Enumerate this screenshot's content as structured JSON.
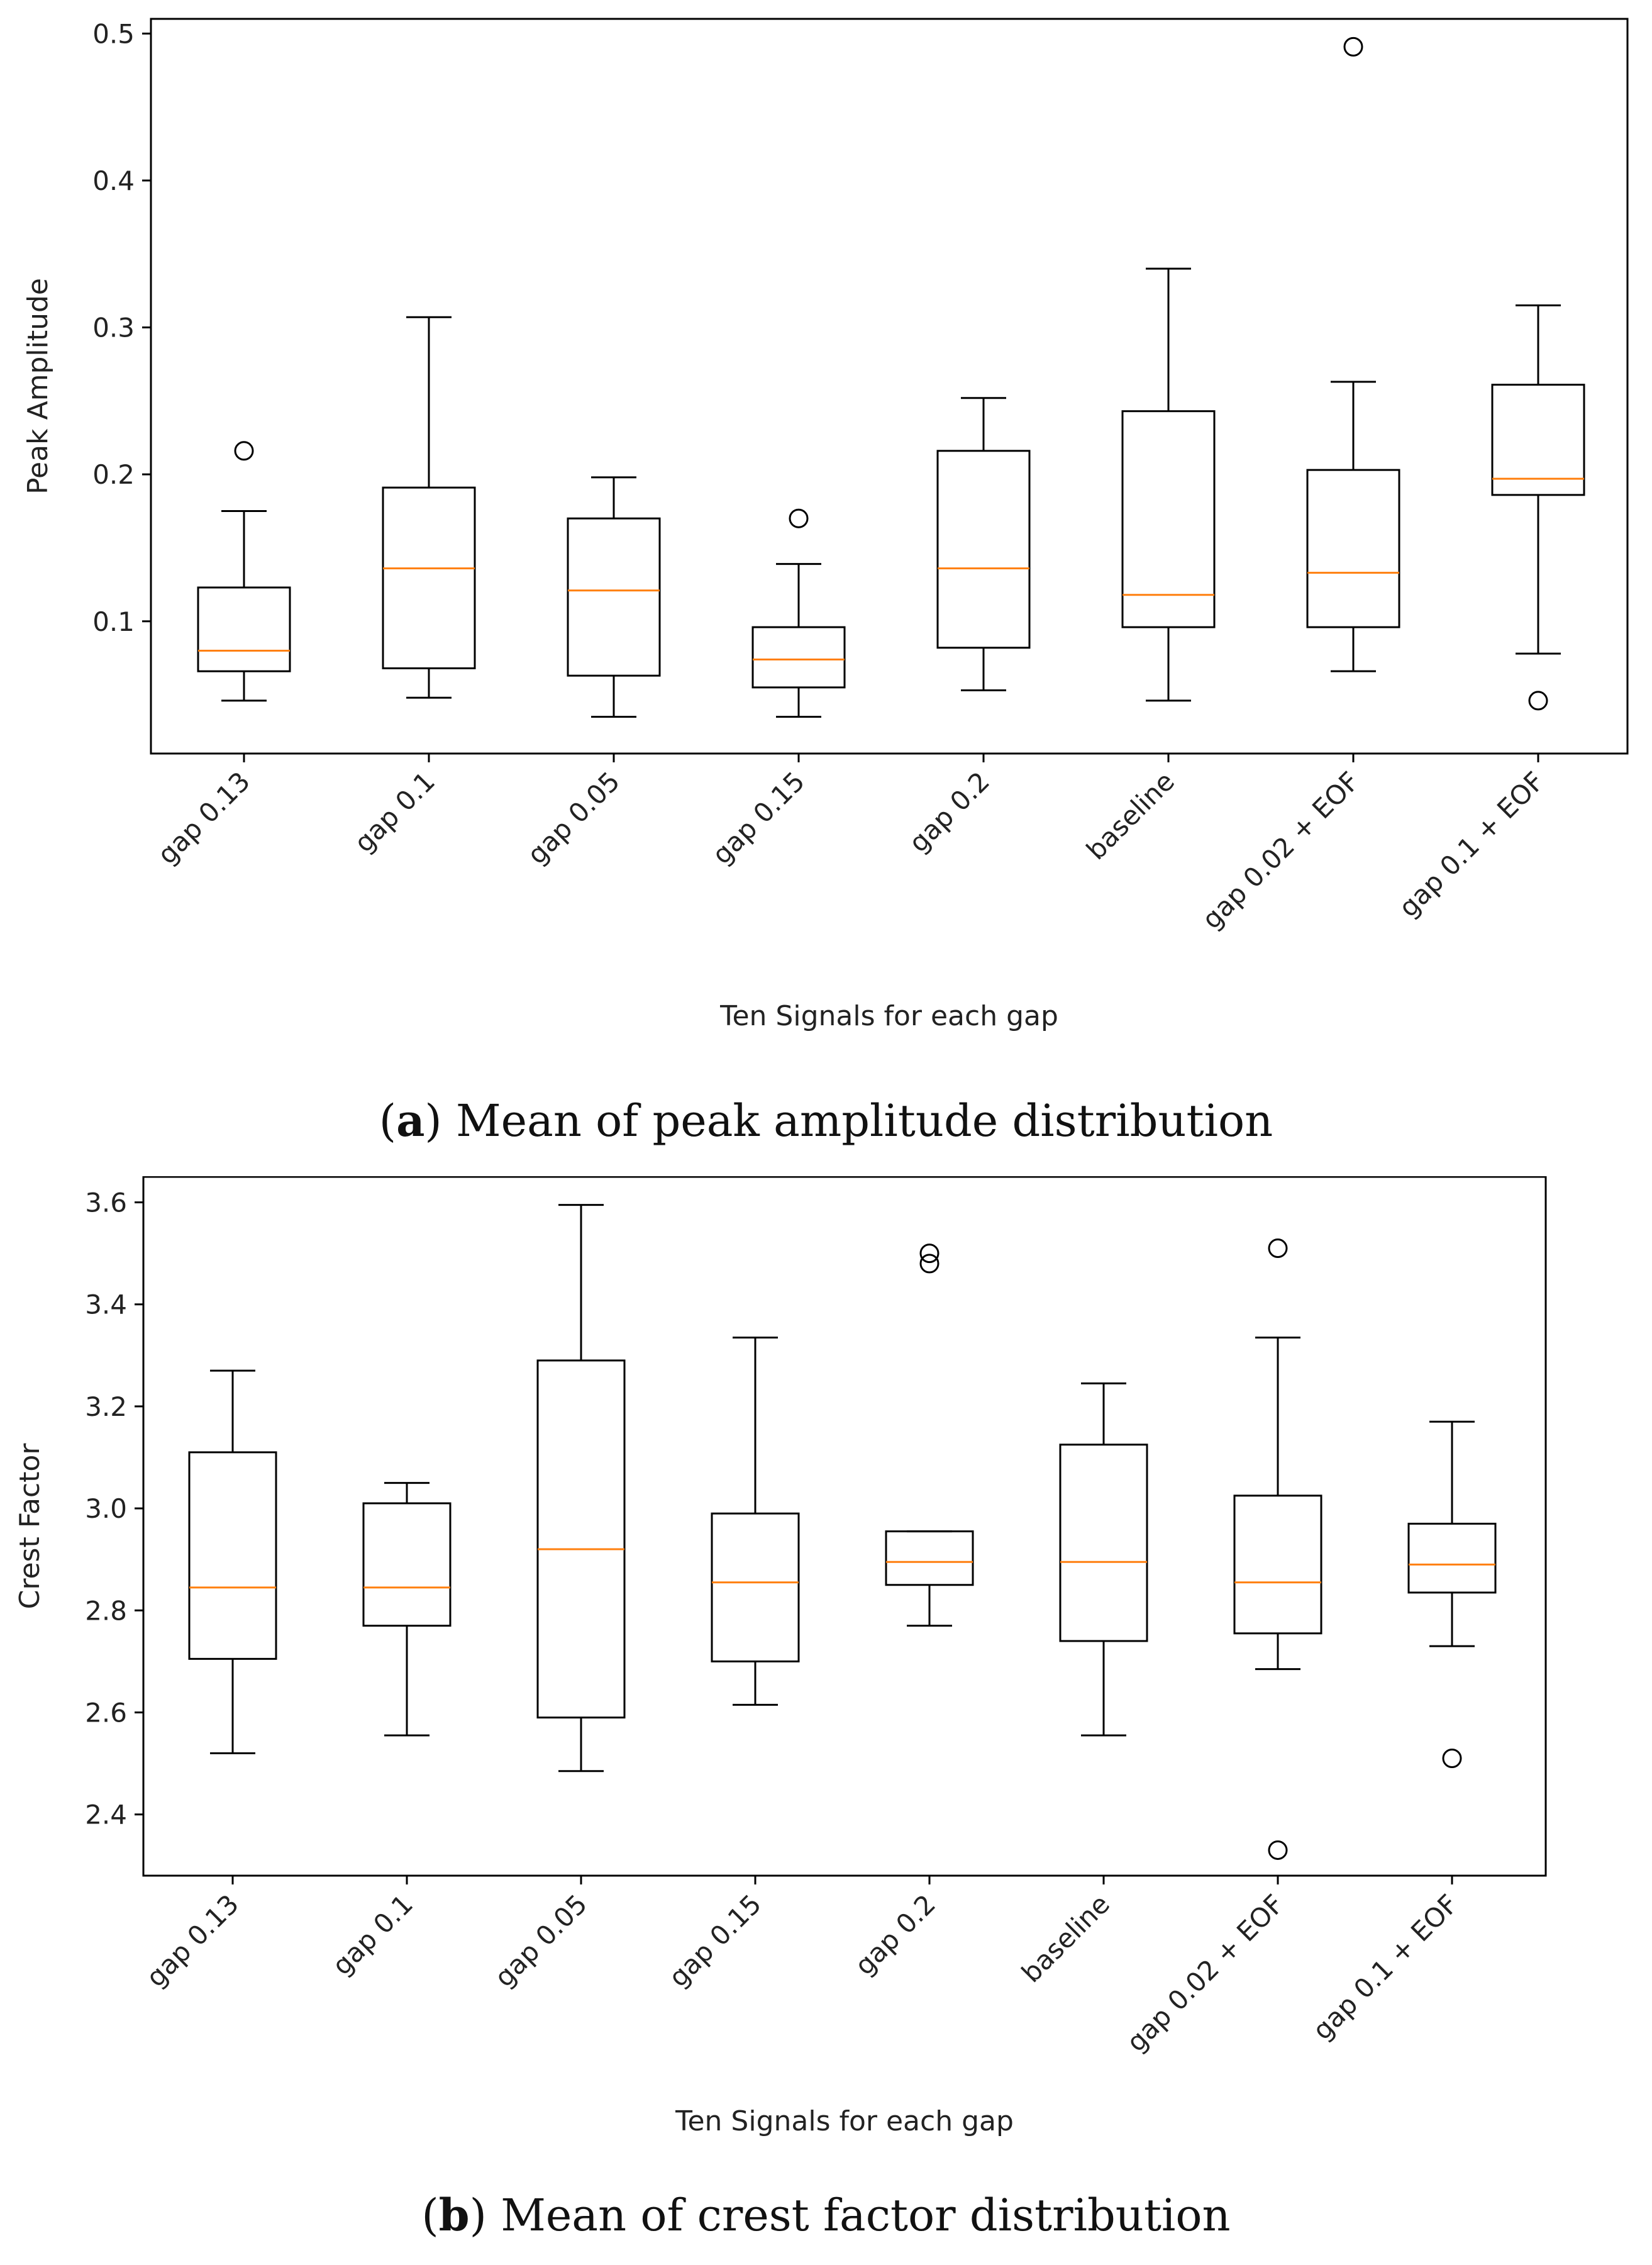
{
  "chart_data": [
    {
      "type": "box",
      "xlabel": "Ten Signals for each gap",
      "ylabel": "Peak Amplitude",
      "ylim": [
        0.01,
        0.51
      ],
      "yticks": [
        0.1,
        0.2,
        0.3,
        0.4,
        0.5
      ],
      "ytick_labels": [
        "0.1",
        "0.2",
        "0.3",
        "0.4",
        "0.5"
      ],
      "categories": [
        "gap 0.13",
        "gap 0.1",
        "gap 0.05",
        "gap 0.15",
        "gap 0.2",
        "baseline",
        "gap 0.02 + EOF",
        "gap 0.1 + EOF"
      ],
      "boxes": [
        {
          "whislo": 0.046,
          "q1": 0.066,
          "med": 0.08,
          "q3": 0.123,
          "whishi": 0.175,
          "fliers": [
            0.216
          ]
        },
        {
          "whislo": 0.048,
          "q1": 0.068,
          "med": 0.136,
          "q3": 0.191,
          "whishi": 0.307,
          "fliers": []
        },
        {
          "whislo": 0.035,
          "q1": 0.063,
          "med": 0.121,
          "q3": 0.17,
          "whishi": 0.198,
          "fliers": []
        },
        {
          "whislo": 0.035,
          "q1": 0.055,
          "med": 0.074,
          "q3": 0.096,
          "whishi": 0.139,
          "fliers": [
            0.17
          ]
        },
        {
          "whislo": 0.053,
          "q1": 0.082,
          "med": 0.136,
          "q3": 0.216,
          "whishi": 0.252,
          "fliers": []
        },
        {
          "whislo": 0.046,
          "q1": 0.096,
          "med": 0.118,
          "q3": 0.243,
          "whishi": 0.34,
          "fliers": []
        },
        {
          "whislo": 0.066,
          "q1": 0.096,
          "med": 0.133,
          "q3": 0.203,
          "whishi": 0.263,
          "fliers": [
            0.491
          ]
        },
        {
          "whislo": 0.078,
          "q1": 0.186,
          "med": 0.197,
          "q3": 0.261,
          "whishi": 0.315,
          "fliers": [
            0.046
          ]
        }
      ],
      "colors": {
        "median": "#ff7f0e",
        "box": "#000000"
      }
    },
    {
      "type": "box",
      "xlabel": "Ten Signals for each gap",
      "ylabel": "Crest Factor",
      "ylim": [
        2.28,
        3.65
      ],
      "yticks": [
        2.4,
        2.6,
        2.8,
        3.0,
        3.2,
        3.4,
        3.6
      ],
      "ytick_labels": [
        "2.4",
        "2.6",
        "2.8",
        "3.0",
        "3.2",
        "3.4",
        "3.6"
      ],
      "categories": [
        "gap 0.13",
        "gap 0.1",
        "gap 0.05",
        "gap 0.15",
        "gap 0.2",
        "baseline",
        "gap 0.02 + EOF",
        "gap 0.1 + EOF"
      ],
      "boxes": [
        {
          "whislo": 2.52,
          "q1": 2.705,
          "med": 2.845,
          "q3": 3.11,
          "whishi": 3.27,
          "fliers": []
        },
        {
          "whislo": 2.555,
          "q1": 2.77,
          "med": 2.845,
          "q3": 3.01,
          "whishi": 3.05,
          "fliers": []
        },
        {
          "whislo": 2.485,
          "q1": 2.59,
          "med": 2.92,
          "q3": 3.29,
          "whishi": 3.595,
          "fliers": []
        },
        {
          "whislo": 2.615,
          "q1": 2.7,
          "med": 2.855,
          "q3": 2.99,
          "whishi": 3.335,
          "fliers": []
        },
        {
          "whislo": 2.77,
          "q1": 2.85,
          "med": 2.895,
          "q3": 2.955,
          "whishi": 2.955,
          "fliers": [
            3.48,
            3.5
          ]
        },
        {
          "whislo": 2.555,
          "q1": 2.74,
          "med": 2.895,
          "q3": 3.125,
          "whishi": 3.245,
          "fliers": []
        },
        {
          "whislo": 2.685,
          "q1": 2.755,
          "med": 2.855,
          "q3": 3.025,
          "whishi": 3.335,
          "fliers": [
            2.33,
            3.51
          ]
        },
        {
          "whislo": 2.73,
          "q1": 2.835,
          "med": 2.89,
          "q3": 2.97,
          "whishi": 3.17,
          "fliers": [
            2.51
          ]
        }
      ],
      "colors": {
        "median": "#ff7f0e",
        "box": "#000000"
      }
    }
  ],
  "captions": {
    "a": {
      "label": "a",
      "text": " Mean of peak amplitude distribution"
    },
    "b": {
      "label": "b",
      "text": " Mean of crest factor distribution"
    }
  }
}
